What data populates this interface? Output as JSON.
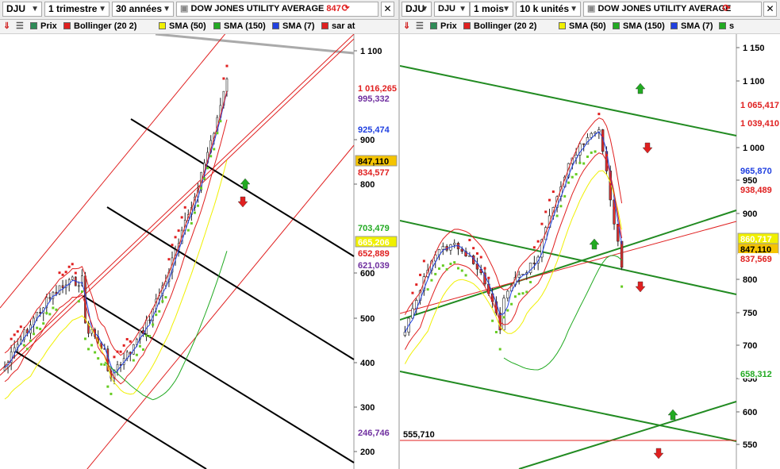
{
  "left_pane": {
    "symbol": "DJU",
    "period": "1 trimestre",
    "range": "30 années",
    "title": "DOW JONES UTILITY AVERAGE",
    "title_value": "847",
    "legend": [
      {
        "label": "Prix",
        "color": "#2e8b57"
      },
      {
        "label": "Bollinger (20 2)",
        "color": "#e02020"
      },
      {
        "label": "SMA (50)",
        "color": "#f0f000"
      },
      {
        "label": "SMA (150)",
        "color": "#22aa22"
      },
      {
        "label": "SMA (7)",
        "color": "#2040e0"
      },
      {
        "label": "sar at",
        "color": "#e02020"
      }
    ],
    "axis_ticks": [
      "1 100",
      "900",
      "800",
      "600",
      "500",
      "400",
      "300",
      "200"
    ],
    "value_tags": [
      {
        "text": "1 016,265",
        "color": "#e02020",
        "bg": "#ffffff"
      },
      {
        "text": "995,332",
        "color": "#7030a0",
        "bg": "#ffffff"
      },
      {
        "text": "925,474",
        "color": "#2040e0",
        "bg": "#ffffff"
      },
      {
        "text": "847,110",
        "color": "#000000",
        "bg": "#f5c400"
      },
      {
        "text": "834,577",
        "color": "#e02020",
        "bg": "#ffffff"
      },
      {
        "text": "703,479",
        "color": "#22aa22",
        "bg": "#ffffff"
      },
      {
        "text": "665,206",
        "color": "#ffffff",
        "bg": "#f0f000"
      },
      {
        "text": "652,889",
        "color": "#e02020",
        "bg": "#ffffff"
      },
      {
        "text": "621,039",
        "color": "#7030a0",
        "bg": "#ffffff"
      },
      {
        "text": "246,746",
        "color": "#7030a0",
        "bg": "#ffffff"
      }
    ]
  },
  "right_pane": {
    "symbol": "DJU",
    "period": "1 mois",
    "range": "10 k unités",
    "title": "DOW JONES UTILITY AVERAGE",
    "legend": [
      {
        "label": "Prix",
        "color": "#2e8b57"
      },
      {
        "label": "Bollinger (20 2)",
        "color": "#e02020"
      },
      {
        "label": "SMA (50)",
        "color": "#f0f000"
      },
      {
        "label": "SMA (150)",
        "color": "#22aa22"
      },
      {
        "label": "SMA (7)",
        "color": "#2040e0"
      },
      {
        "label": "s",
        "color": "#22aa22"
      }
    ],
    "axis_ticks": [
      "1 150",
      "1 100",
      "1 000",
      "950",
      "900",
      "800",
      "750",
      "700",
      "650",
      "600",
      "550"
    ],
    "value_tags": [
      {
        "text": "1 065,417",
        "color": "#e02020",
        "bg": "#ffffff"
      },
      {
        "text": "1 039,410",
        "color": "#e02020",
        "bg": "#ffffff"
      },
      {
        "text": "965,870",
        "color": "#2040e0",
        "bg": "#ffffff"
      },
      {
        "text": "938,489",
        "color": "#e02020",
        "bg": "#ffffff"
      },
      {
        "text": "860,717",
        "color": "#ffffff",
        "bg": "#f0f000"
      },
      {
        "text": "847,110",
        "color": "#000000",
        "bg": "#f5c400"
      },
      {
        "text": "837,569",
        "color": "#e02020",
        "bg": "#ffffff"
      },
      {
        "text": "658,312",
        "color": "#22aa22",
        "bg": "#ffffff"
      }
    ],
    "annotation": "555,710"
  },
  "colors": {
    "candle_up": "#2e8b57",
    "candle_down": "#e03030",
    "bollinger": "#e02020",
    "sma7": "#2040e0",
    "sma50": "#f0f000",
    "sma150": "#22aa22",
    "sar": "#e02020",
    "sar_up": "#66cc22",
    "trend_black": "#000000",
    "trend_green": "#228b22"
  }
}
